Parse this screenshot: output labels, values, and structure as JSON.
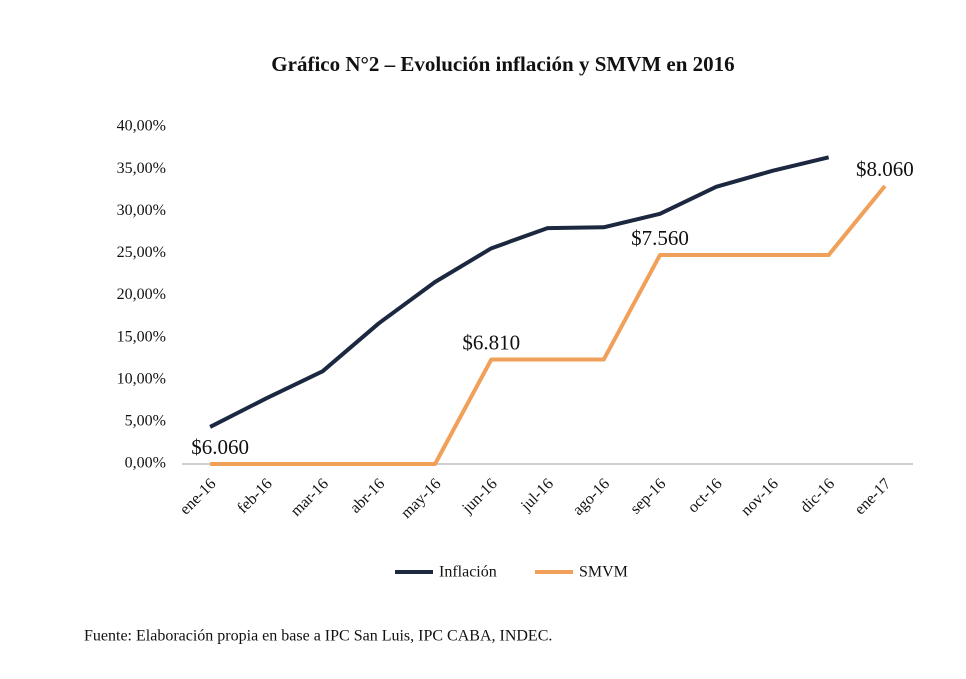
{
  "chart_data": {
    "type": "line",
    "title": "Gráfico N°2 – Evolución inflación y SMVM en 2016",
    "categories": [
      "ene-16",
      "feb-16",
      "mar-16",
      "abr-16",
      "may-16",
      "jun-16",
      "jul-16",
      "ago-16",
      "sep-16",
      "oct-16",
      "nov-16",
      "dic-16",
      "ene-17"
    ],
    "series": [
      {
        "name": "Inflación",
        "color": "#1c2840",
        "values": [
          4.4,
          7.8,
          11.0,
          16.7,
          21.6,
          25.6,
          28.0,
          28.1,
          29.7,
          32.9,
          34.8,
          36.4,
          null
        ]
      },
      {
        "name": "SMVM",
        "color": "#f0a058",
        "values": [
          0,
          0,
          0,
          0,
          0,
          12.4,
          12.4,
          12.4,
          24.8,
          24.8,
          24.8,
          24.8,
          33.0
        ]
      }
    ],
    "annotations": [
      {
        "text": "$6.060",
        "x": "ene-16"
      },
      {
        "text": "$6.810",
        "x": "jun-16"
      },
      {
        "text": "$7.560",
        "x": "sep-16"
      },
      {
        "text": "$8.060",
        "x": "ene-17"
      }
    ],
    "ylim": [
      0,
      40
    ],
    "yticks": [
      {
        "value": 0,
        "label": "0,00%"
      },
      {
        "value": 5,
        "label": "5,00%"
      },
      {
        "value": 10,
        "label": "10,00%"
      },
      {
        "value": 15,
        "label": "15,00%"
      },
      {
        "value": 20,
        "label": "20,00%"
      },
      {
        "value": 25,
        "label": "25,00%"
      },
      {
        "value": 30,
        "label": "30,00%"
      },
      {
        "value": 35,
        "label": "35,00%"
      },
      {
        "value": 40,
        "label": "40,00%"
      }
    ],
    "grid": false,
    "legend": "bottom",
    "source": "Fuente:  Elaboración propia en base a IPC San Luis, IPC CABA, INDEC."
  }
}
